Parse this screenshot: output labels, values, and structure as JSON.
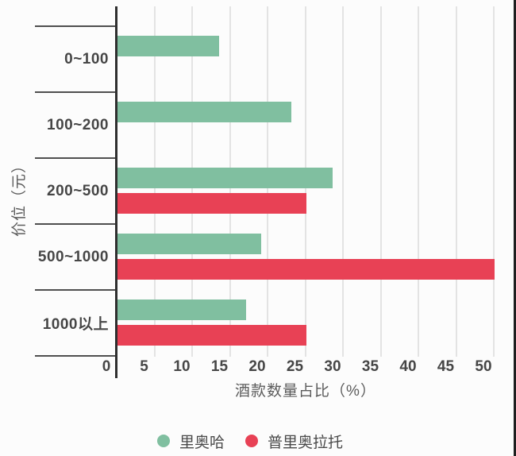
{
  "chart_data": {
    "type": "bar",
    "orientation": "horizontal",
    "categories": [
      "0~100",
      "100~200",
      "200~500",
      "500~1000",
      "1000以上"
    ],
    "series": [
      {
        "name": "里奥哈",
        "color": "#80bfa0",
        "values": [
          13.5,
          23,
          28.5,
          19,
          17
        ]
      },
      {
        "name": "普里奥拉托",
        "color": "#e84155",
        "values": [
          null,
          null,
          25,
          50,
          25
        ]
      }
    ],
    "xlabel": "酒款数量占比（%）",
    "ylabel": "价位（元）",
    "xlim": [
      0,
      52.5
    ],
    "xticks": [
      0,
      5,
      10,
      15,
      20,
      25,
      30,
      35,
      40,
      45,
      50
    ],
    "grid": true,
    "legend_position": "bottom"
  },
  "colors": {
    "background": "#fcfcfc",
    "gridline": "#e3e3e3",
    "axis_line": "#2f2f2f",
    "tick_text": "#464646",
    "axis_title_text": "#5c5c5c",
    "series_green": "#80bfa0",
    "series_red": "#e84155"
  }
}
